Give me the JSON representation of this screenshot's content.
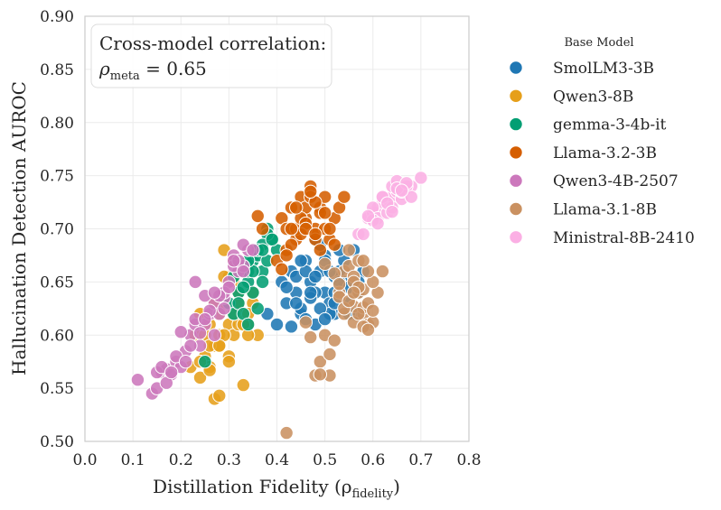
{
  "chart_data": {
    "type": "scatter",
    "xlabel": "Distillation Fidelity (ρ",
    "xlabel_sub": "fidelity",
    "xlabel_end": ")",
    "ylabel": "Hallucination Detection AUROC",
    "xlim": [
      0.0,
      0.8
    ],
    "ylim": [
      0.5,
      0.9
    ],
    "xticks": [
      0.0,
      0.1,
      0.2,
      0.3,
      0.4,
      0.5,
      0.6,
      0.7,
      0.8
    ],
    "yticks": [
      0.5,
      0.55,
      0.6,
      0.65,
      0.7,
      0.75,
      0.8,
      0.85,
      0.9
    ],
    "xtick_labels": [
      "0.0",
      "0.1",
      "0.2",
      "0.3",
      "0.4",
      "0.5",
      "0.6",
      "0.7",
      "0.8"
    ],
    "ytick_labels": [
      "0.50",
      "0.55",
      "0.60",
      "0.65",
      "0.70",
      "0.75",
      "0.80",
      "0.85",
      "0.90"
    ],
    "grid": true,
    "annotation": {
      "line1": "Cross-model correlation:",
      "rho": "ρ",
      "sub": "meta",
      "value": " = 0.65"
    },
    "legend": {
      "title": "Base Model",
      "placement": "outside-right"
    },
    "series": [
      {
        "name": "SmolLM3-3B",
        "color": "#1f77b4",
        "x": [
          0.38,
          0.4,
          0.41,
          0.42,
          0.43,
          0.44,
          0.45,
          0.46,
          0.47,
          0.48,
          0.49,
          0.5,
          0.51,
          0.52,
          0.53,
          0.54,
          0.55,
          0.56,
          0.57,
          0.58,
          0.42,
          0.44,
          0.46,
          0.48,
          0.5,
          0.52,
          0.54,
          0.56,
          0.45,
          0.47,
          0.49,
          0.51,
          0.53,
          0.55,
          0.43,
          0.46,
          0.48,
          0.5,
          0.52,
          0.57,
          0.44,
          0.47,
          0.49,
          0.51,
          0.53,
          0.55,
          0.45,
          0.48,
          0.5,
          0.52
        ],
        "y": [
          0.62,
          0.61,
          0.65,
          0.63,
          0.66,
          0.64,
          0.62,
          0.67,
          0.65,
          0.61,
          0.66,
          0.64,
          0.63,
          0.62,
          0.66,
          0.65,
          0.63,
          0.62,
          0.64,
          0.66,
          0.645,
          0.655,
          0.66,
          0.64,
          0.675,
          0.655,
          0.67,
          0.68,
          0.625,
          0.635,
          0.685,
          0.62,
          0.65,
          0.645,
          0.608,
          0.615,
          0.69,
          0.67,
          0.64,
          0.65,
          0.63,
          0.64,
          0.625,
          0.66,
          0.68,
          0.62,
          0.67,
          0.655,
          0.615,
          0.63
        ]
      },
      {
        "name": "Qwen3-8B",
        "color": "#e69f1a",
        "x": [
          0.22,
          0.23,
          0.24,
          0.25,
          0.26,
          0.27,
          0.28,
          0.29,
          0.3,
          0.31,
          0.32,
          0.33,
          0.34,
          0.35,
          0.36,
          0.24,
          0.26,
          0.28,
          0.3,
          0.32,
          0.34,
          0.25,
          0.27,
          0.29,
          0.31,
          0.33,
          0.35,
          0.26,
          0.28,
          0.3,
          0.32,
          0.29,
          0.31,
          0.33,
          0.27,
          0.3,
          0.34,
          0.24,
          0.28,
          0.33,
          0.29,
          0.31,
          0.26,
          0.28
        ],
        "y": [
          0.57,
          0.6,
          0.62,
          0.58,
          0.61,
          0.59,
          0.6,
          0.63,
          0.61,
          0.6,
          0.64,
          0.62,
          0.61,
          0.63,
          0.6,
          0.56,
          0.57,
          0.59,
          0.58,
          0.61,
          0.62,
          0.6,
          0.63,
          0.6,
          0.65,
          0.61,
          0.64,
          0.59,
          0.62,
          0.655,
          0.63,
          0.68,
          0.67,
          0.66,
          0.54,
          0.575,
          0.6,
          0.575,
          0.59,
          0.553,
          0.655,
          0.62,
          0.567,
          0.543
        ]
      },
      {
        "name": "gemma-3-4b-it",
        "color": "#029e73",
        "x": [
          0.3,
          0.31,
          0.32,
          0.33,
          0.34,
          0.35,
          0.36,
          0.37,
          0.38,
          0.39,
          0.4,
          0.32,
          0.34,
          0.36,
          0.38,
          0.33,
          0.35,
          0.37,
          0.31,
          0.34,
          0.36,
          0.38,
          0.35,
          0.37,
          0.33,
          0.36,
          0.25,
          0.39,
          0.34,
          0.37
        ],
        "y": [
          0.63,
          0.62,
          0.64,
          0.66,
          0.65,
          0.67,
          0.68,
          0.66,
          0.7,
          0.69,
          0.68,
          0.63,
          0.66,
          0.675,
          0.695,
          0.62,
          0.64,
          0.685,
          0.655,
          0.61,
          0.68,
          0.67,
          0.66,
          0.65,
          0.645,
          0.625,
          0.575,
          0.69,
          0.67,
          0.68
        ]
      },
      {
        "name": "Llama-3.2-3B",
        "color": "#d55e00",
        "x": [
          0.37,
          0.4,
          0.41,
          0.42,
          0.43,
          0.44,
          0.45,
          0.46,
          0.47,
          0.48,
          0.49,
          0.5,
          0.51,
          0.52,
          0.53,
          0.54,
          0.42,
          0.44,
          0.46,
          0.48,
          0.5,
          0.45,
          0.47,
          0.49,
          0.43,
          0.46,
          0.48,
          0.51,
          0.44,
          0.47,
          0.36,
          0.41,
          0.45,
          0.49,
          0.42,
          0.46,
          0.5,
          0.43,
          0.52,
          0.48
        ],
        "y": [
          0.7,
          0.67,
          0.71,
          0.7,
          0.72,
          0.69,
          0.73,
          0.71,
          0.74,
          0.7,
          0.72,
          0.73,
          0.69,
          0.71,
          0.72,
          0.73,
          0.68,
          0.7,
          0.72,
          0.69,
          0.7,
          0.71,
          0.73,
          0.715,
          0.685,
          0.705,
          0.725,
          0.7,
          0.72,
          0.735,
          0.712,
          0.662,
          0.695,
          0.68,
          0.675,
          0.7,
          0.715,
          0.7,
          0.685,
          0.695
        ]
      },
      {
        "name": "Qwen3-4B-2507",
        "color": "#cc78bc",
        "x": [
          0.11,
          0.14,
          0.15,
          0.16,
          0.17,
          0.18,
          0.19,
          0.2,
          0.21,
          0.22,
          0.23,
          0.24,
          0.25,
          0.26,
          0.27,
          0.28,
          0.29,
          0.3,
          0.31,
          0.32,
          0.33,
          0.34,
          0.15,
          0.17,
          0.19,
          0.21,
          0.23,
          0.25,
          0.27,
          0.29,
          0.31,
          0.33,
          0.16,
          0.18,
          0.2,
          0.22,
          0.24,
          0.26,
          0.28,
          0.3,
          0.32,
          0.23,
          0.25,
          0.27,
          0.29,
          0.31,
          0.33,
          0.35
        ],
        "y": [
          0.558,
          0.545,
          0.55,
          0.565,
          0.568,
          0.563,
          0.575,
          0.57,
          0.585,
          0.6,
          0.61,
          0.59,
          0.61,
          0.62,
          0.63,
          0.62,
          0.635,
          0.65,
          0.675,
          0.66,
          0.665,
          0.68,
          0.565,
          0.555,
          0.58,
          0.575,
          0.615,
          0.637,
          0.6,
          0.64,
          0.665,
          0.685,
          0.57,
          0.565,
          0.603,
          0.59,
          0.602,
          0.623,
          0.637,
          0.645,
          0.67,
          0.65,
          0.615,
          0.64,
          0.625,
          0.67,
          0.66,
          0.68
        ]
      },
      {
        "name": "Llama-3.1-8B",
        "color": "#ca9161",
        "x": [
          0.42,
          0.47,
          0.48,
          0.49,
          0.5,
          0.51,
          0.52,
          0.53,
          0.54,
          0.55,
          0.56,
          0.57,
          0.58,
          0.59,
          0.6,
          0.61,
          0.62,
          0.54,
          0.56,
          0.58,
          0.6,
          0.55,
          0.57,
          0.59,
          0.53,
          0.56,
          0.58,
          0.52,
          0.57,
          0.59,
          0.51,
          0.54,
          0.56,
          0.58,
          0.6,
          0.5,
          0.55,
          0.57,
          0.49,
          0.46,
          0.53,
          0.58,
          0.56,
          0.59
        ],
        "y": [
          0.508,
          0.598,
          0.562,
          0.575,
          0.6,
          0.562,
          0.595,
          0.64,
          0.66,
          0.665,
          0.655,
          0.64,
          0.62,
          0.61,
          0.612,
          0.64,
          0.66,
          0.62,
          0.627,
          0.643,
          0.65,
          0.68,
          0.67,
          0.66,
          0.636,
          0.65,
          0.626,
          0.658,
          0.645,
          0.63,
          0.582,
          0.625,
          0.612,
          0.608,
          0.623,
          0.667,
          0.632,
          0.62,
          0.563,
          0.612,
          0.648,
          0.67,
          0.64,
          0.605
        ]
      },
      {
        "name": "Ministral-8B-2410",
        "color": "#fbafe4",
        "x": [
          0.57,
          0.58,
          0.59,
          0.6,
          0.61,
          0.62,
          0.63,
          0.64,
          0.65,
          0.66,
          0.67,
          0.68,
          0.7,
          0.6,
          0.62,
          0.64,
          0.66,
          0.61,
          0.63,
          0.65,
          0.67,
          0.62,
          0.64,
          0.66,
          0.68,
          0.6,
          0.63,
          0.65,
          0.67,
          0.59,
          0.61,
          0.64,
          0.66
        ],
        "y": [
          0.695,
          0.695,
          0.71,
          0.715,
          0.72,
          0.725,
          0.728,
          0.73,
          0.735,
          0.733,
          0.738,
          0.74,
          0.748,
          0.72,
          0.73,
          0.74,
          0.728,
          0.71,
          0.715,
          0.745,
          0.74,
          0.73,
          0.72,
          0.735,
          0.73,
          0.708,
          0.724,
          0.738,
          0.743,
          0.712,
          0.705,
          0.716,
          0.736
        ]
      }
    ]
  }
}
